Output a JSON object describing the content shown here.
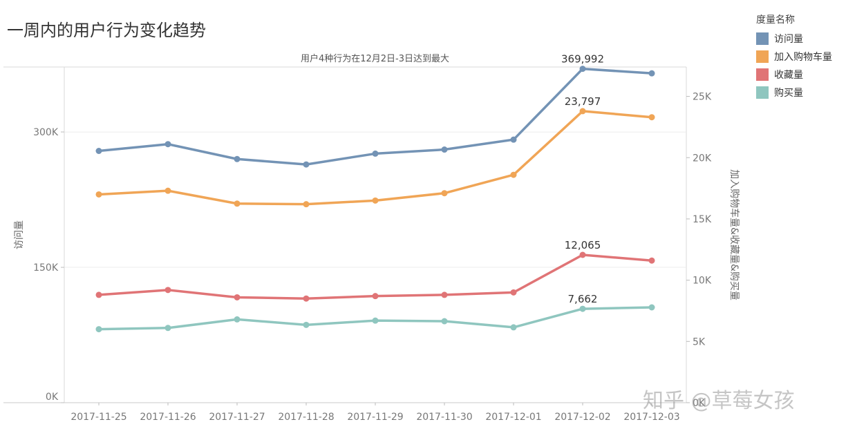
{
  "chart_data": {
    "type": "line",
    "title": "一周内的用户行为变化趋势",
    "subtitle": "用户4种行为在12月2日-3日达到最大",
    "categories": [
      "2017-11-25",
      "2017-11-26",
      "2017-11-27",
      "2017-11-28",
      "2017-11-29",
      "2017-11-30",
      "2017-12-01",
      "2017-12-02",
      "2017-12-03"
    ],
    "left_axis": {
      "label": "访问量",
      "ylim": [
        0,
        372000
      ],
      "ticks": [
        0,
        150000,
        300000
      ],
      "tick_labels": [
        "0K",
        "150K",
        "300K"
      ]
    },
    "right_axis": {
      "label": "加入购物车量&收藏量&购买量",
      "ylim": [
        0,
        27400
      ],
      "ticks": [
        0,
        5000,
        10000,
        15000,
        20000,
        25000
      ],
      "tick_labels": [
        "0K",
        "5K",
        "10K",
        "15K",
        "20K",
        "25K"
      ]
    },
    "legend": {
      "title": "度量名称",
      "position": "top-right"
    },
    "series": [
      {
        "name": "访问量",
        "axis": "left",
        "color": "#7393b5",
        "values": [
          279000,
          286500,
          270000,
          264000,
          276000,
          280500,
          291500,
          369992,
          365000
        ],
        "annotation": {
          "index": 7,
          "text": "369,992"
        }
      },
      {
        "name": "加入购物车量",
        "axis": "right",
        "color": "#f0a556",
        "values": [
          17000,
          17300,
          16250,
          16200,
          16500,
          17100,
          18600,
          23797,
          23300
        ],
        "annotation": {
          "index": 7,
          "text": "23,797"
        }
      },
      {
        "name": "收藏量",
        "axis": "right",
        "color": "#e07476",
        "values": [
          8800,
          9200,
          8600,
          8500,
          8700,
          8800,
          9000,
          12065,
          11600
        ],
        "annotation": {
          "index": 7,
          "text": "12,065"
        }
      },
      {
        "name": "购买量",
        "axis": "right",
        "color": "#8fc6bf",
        "values": [
          6000,
          6100,
          6800,
          6350,
          6700,
          6650,
          6150,
          7662,
          7780
        ],
        "annotation": {
          "index": 7,
          "text": "7,662"
        }
      }
    ],
    "grid": true
  },
  "watermark": "知乎 @草莓女孩"
}
